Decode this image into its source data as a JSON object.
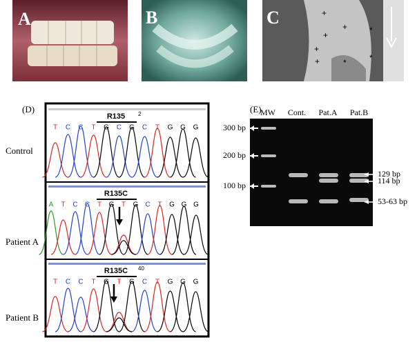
{
  "panels": {
    "a": "A",
    "b": "B",
    "c": "C"
  },
  "sequencing": {
    "label": "(D)",
    "rows": [
      {
        "name": "Control",
        "mutation": "R135",
        "marker": "2",
        "bases": [
          "T",
          "C",
          "C",
          "T",
          "G",
          "C",
          "G",
          "C",
          "T",
          "G",
          "G",
          "G"
        ]
      },
      {
        "name": "Patient A",
        "mutation": "R135C",
        "bases": [
          "A",
          "T",
          "C",
          "C",
          "T",
          "G",
          "T",
          "G",
          "C",
          "T",
          "G",
          "G",
          "G"
        ]
      },
      {
        "name": "Patient B",
        "mutation": "R135C",
        "marker": "40",
        "bases": [
          "T",
          "C",
          "C",
          "T",
          "G",
          "T",
          "G",
          "C",
          "T",
          "G",
          "G",
          "G"
        ]
      }
    ]
  },
  "gel": {
    "label": "(E)",
    "lanes": [
      "MW",
      "Cont.",
      "Pat.A",
      "Pat.B"
    ],
    "ladder": [
      "300 bp",
      "200 bp",
      "100 bp"
    ],
    "bands": [
      "129 bp",
      "114 bp",
      "53-63 bp"
    ]
  }
}
